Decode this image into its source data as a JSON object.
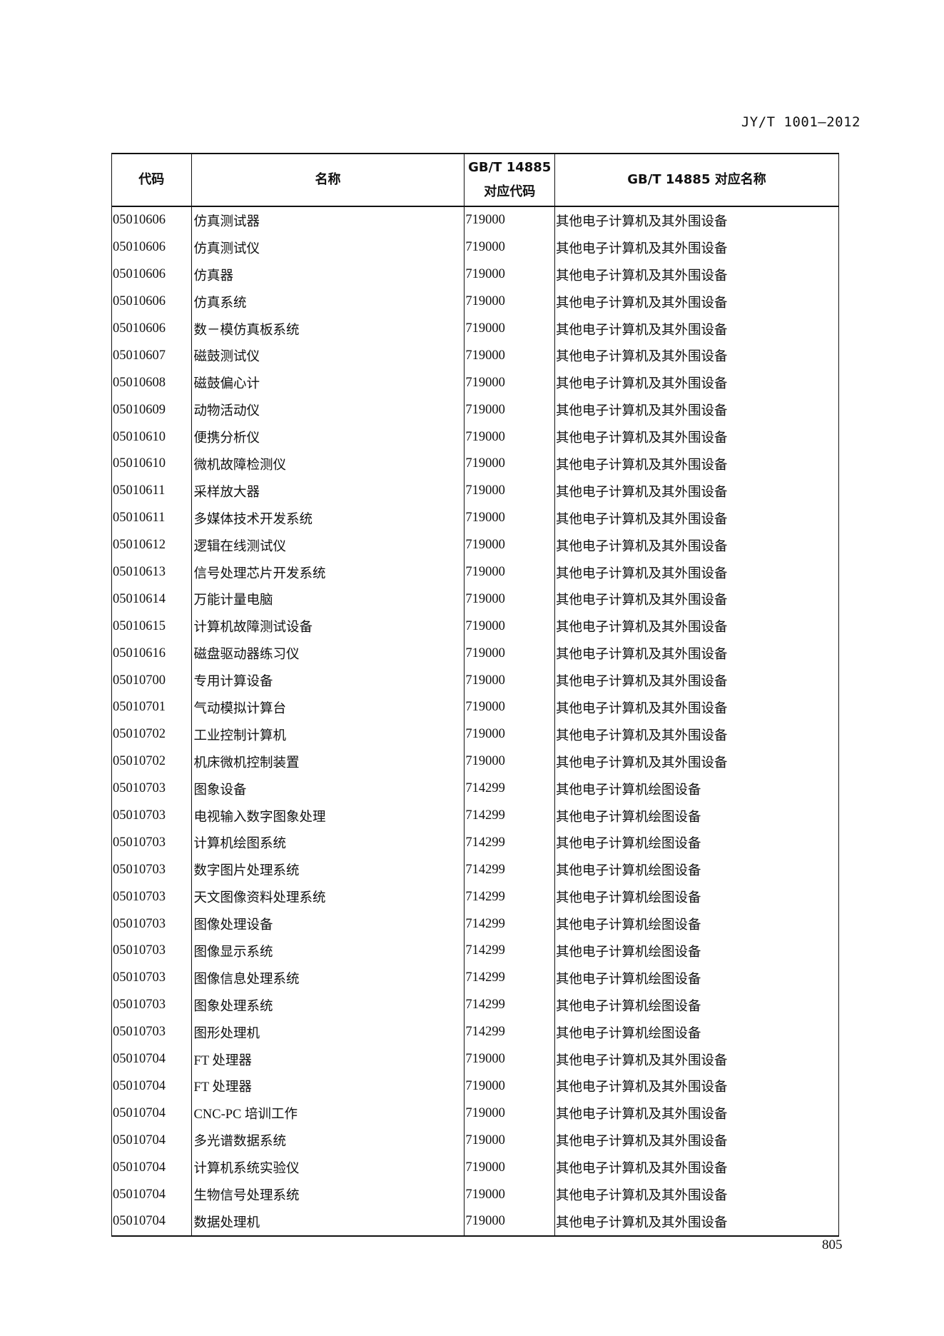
{
  "header": {
    "standard_id": "JY/T 1001—2012"
  },
  "table": {
    "columns": [
      "代码",
      "名称",
      "GB/T 14885\n对应代码",
      "GB/T 14885 对应名称"
    ],
    "column_lines": {
      "gb_code_line1": "GB/T 14885",
      "gb_code_line2": "对应代码"
    },
    "rows": [
      [
        "05010606",
        "仿真测试器",
        "719000",
        "其他电子计算机及其外围设备"
      ],
      [
        "05010606",
        "仿真测试仪",
        "719000",
        "其他电子计算机及其外围设备"
      ],
      [
        "05010606",
        "仿真器",
        "719000",
        "其他电子计算机及其外围设备"
      ],
      [
        "05010606",
        "仿真系统",
        "719000",
        "其他电子计算机及其外围设备"
      ],
      [
        "05010606",
        "数－模仿真板系统",
        "719000",
        "其他电子计算机及其外围设备"
      ],
      [
        "05010607",
        "磁鼓测试仪",
        "719000",
        "其他电子计算机及其外围设备"
      ],
      [
        "05010608",
        "磁鼓偏心计",
        "719000",
        "其他电子计算机及其外围设备"
      ],
      [
        "05010609",
        "动物活动仪",
        "719000",
        "其他电子计算机及其外围设备"
      ],
      [
        "05010610",
        "便携分析仪",
        "719000",
        "其他电子计算机及其外围设备"
      ],
      [
        "05010610",
        "微机故障检测仪",
        "719000",
        "其他电子计算机及其外围设备"
      ],
      [
        "05010611",
        "采样放大器",
        "719000",
        "其他电子计算机及其外围设备"
      ],
      [
        "05010611",
        "多媒体技术开发系统",
        "719000",
        "其他电子计算机及其外围设备"
      ],
      [
        "05010612",
        "逻辑在线测试仪",
        "719000",
        "其他电子计算机及其外围设备"
      ],
      [
        "05010613",
        "信号处理芯片开发系统",
        "719000",
        "其他电子计算机及其外围设备"
      ],
      [
        "05010614",
        "万能计量电脑",
        "719000",
        "其他电子计算机及其外围设备"
      ],
      [
        "05010615",
        "计算机故障测试设备",
        "719000",
        "其他电子计算机及其外围设备"
      ],
      [
        "05010616",
        "磁盘驱动器练习仪",
        "719000",
        "其他电子计算机及其外围设备"
      ],
      [
        "05010700",
        "专用计算设备",
        "719000",
        "其他电子计算机及其外围设备"
      ],
      [
        "05010701",
        "气动模拟计算台",
        "719000",
        "其他电子计算机及其外围设备"
      ],
      [
        "05010702",
        "工业控制计算机",
        "719000",
        "其他电子计算机及其外围设备"
      ],
      [
        "05010702",
        "机床微机控制装置",
        "719000",
        "其他电子计算机及其外围设备"
      ],
      [
        "05010703",
        "图象设备",
        "714299",
        "其他电子计算机绘图设备"
      ],
      [
        "05010703",
        "电视输入数字图象处理",
        "714299",
        "其他电子计算机绘图设备"
      ],
      [
        "05010703",
        "计算机绘图系统",
        "714299",
        "其他电子计算机绘图设备"
      ],
      [
        "05010703",
        "数字图片处理系统",
        "714299",
        "其他电子计算机绘图设备"
      ],
      [
        "05010703",
        "天文图像资料处理系统",
        "714299",
        "其他电子计算机绘图设备"
      ],
      [
        "05010703",
        "图像处理设备",
        "714299",
        "其他电子计算机绘图设备"
      ],
      [
        "05010703",
        "图像显示系统",
        "714299",
        "其他电子计算机绘图设备"
      ],
      [
        "05010703",
        "图像信息处理系统",
        "714299",
        "其他电子计算机绘图设备"
      ],
      [
        "05010703",
        "图象处理系统",
        "714299",
        "其他电子计算机绘图设备"
      ],
      [
        "05010703",
        "图形处理机",
        "714299",
        "其他电子计算机绘图设备"
      ],
      [
        "05010704",
        "FT 处理器",
        "719000",
        "其他电子计算机及其外围设备"
      ],
      [
        "05010704",
        "FT 处理器",
        "719000",
        "其他电子计算机及其外围设备"
      ],
      [
        "05010704",
        "CNC-PC 培训工作",
        "719000",
        "其他电子计算机及其外围设备"
      ],
      [
        "05010704",
        "多光谱数据系统",
        "719000",
        "其他电子计算机及其外围设备"
      ],
      [
        "05010704",
        "计算机系统实验仪",
        "719000",
        "其他电子计算机及其外围设备"
      ],
      [
        "05010704",
        "生物信号处理系统",
        "719000",
        "其他电子计算机及其外围设备"
      ],
      [
        "05010704",
        "数据处理机",
        "719000",
        "其他电子计算机及其外围设备"
      ]
    ]
  },
  "footer": {
    "page_number": "805"
  }
}
